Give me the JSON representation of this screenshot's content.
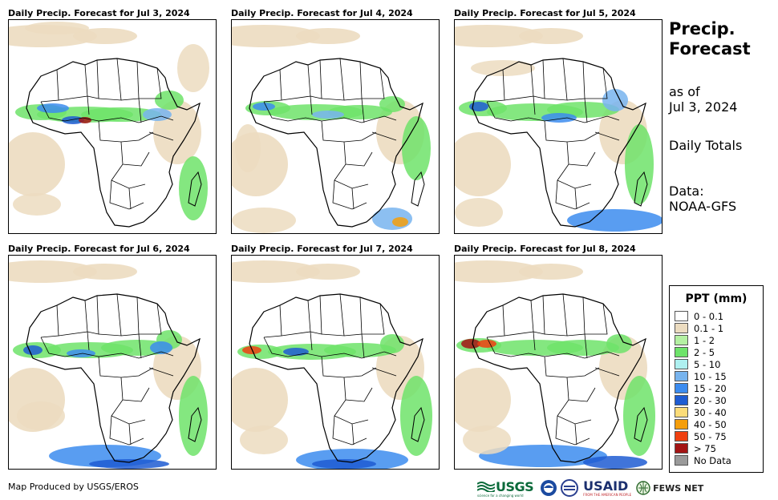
{
  "panels": [
    {
      "title": "Daily Precip. Forecast for Jul 3, 2024"
    },
    {
      "title": "Daily Precip. Forecast for Jul 4, 2024"
    },
    {
      "title": "Daily Precip. Forecast for Jul 5, 2024"
    },
    {
      "title": "Daily Precip. Forecast for Jul 6, 2024"
    },
    {
      "title": "Daily Precip. Forecast for Jul 7, 2024"
    },
    {
      "title": "Daily Precip. Forecast for Jul 8, 2024"
    }
  ],
  "side": {
    "title_line1": "Precip.",
    "title_line2": "Forecast",
    "asof_line1": "as of",
    "asof_line2": "Jul 3, 2024",
    "totals": "Daily Totals",
    "data_line1": "Data:",
    "data_line2": "NOAA-GFS"
  },
  "legend": {
    "title": "PPT (mm)",
    "items": [
      {
        "label": "0 - 0.1",
        "color": "#ffffff"
      },
      {
        "label": "0.1 - 1",
        "color": "#ecdcc0"
      },
      {
        "label": "1 - 2",
        "color": "#b4f0a2"
      },
      {
        "label": "2 - 5",
        "color": "#6ee36a"
      },
      {
        "label": "5 - 10",
        "color": "#aef0f0"
      },
      {
        "label": "10 - 15",
        "color": "#78b4ee"
      },
      {
        "label": "15 - 20",
        "color": "#3c8cef"
      },
      {
        "label": "20 - 30",
        "color": "#1e5cd2"
      },
      {
        "label": "30 - 40",
        "color": "#fcdc78"
      },
      {
        "label": "40 - 50",
        "color": "#f59e0b"
      },
      {
        "label": "50 - 75",
        "color": "#ef4010"
      },
      {
        "label": "> 75",
        "color": "#a31414"
      },
      {
        "label": "No Data",
        "color": "#9a9a9a"
      }
    ]
  },
  "footer": "Map Produced by USGS/EROS",
  "logos": {
    "usgs": "USGS",
    "usgs_tag": "science for a changing world",
    "usaid": "USAID",
    "usaid_tag": "FROM THE AMERICAN PEOPLE",
    "fews": "FEWS NET"
  }
}
